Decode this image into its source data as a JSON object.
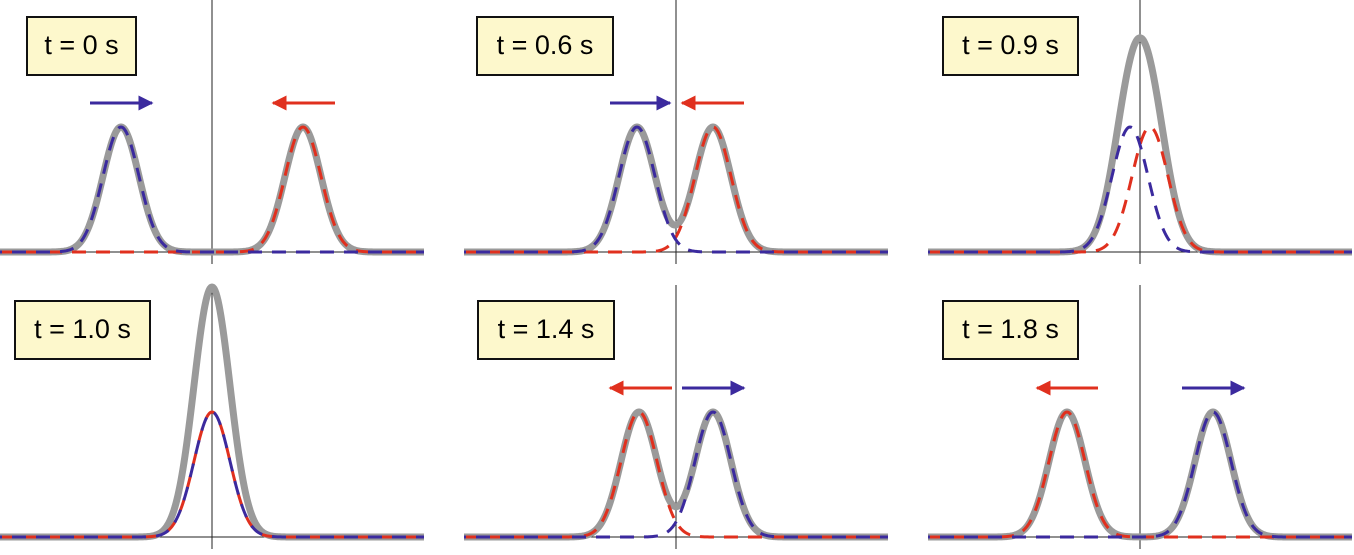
{
  "panels": [
    {
      "label": "t = 0 s"
    },
    {
      "label": "t = 0.6 s"
    },
    {
      "label": "t = 0.9 s"
    },
    {
      "label": "t = 1.0 s"
    },
    {
      "label": "t = 1.4 s"
    },
    {
      "label": "t = 1.8 s"
    }
  ]
}
